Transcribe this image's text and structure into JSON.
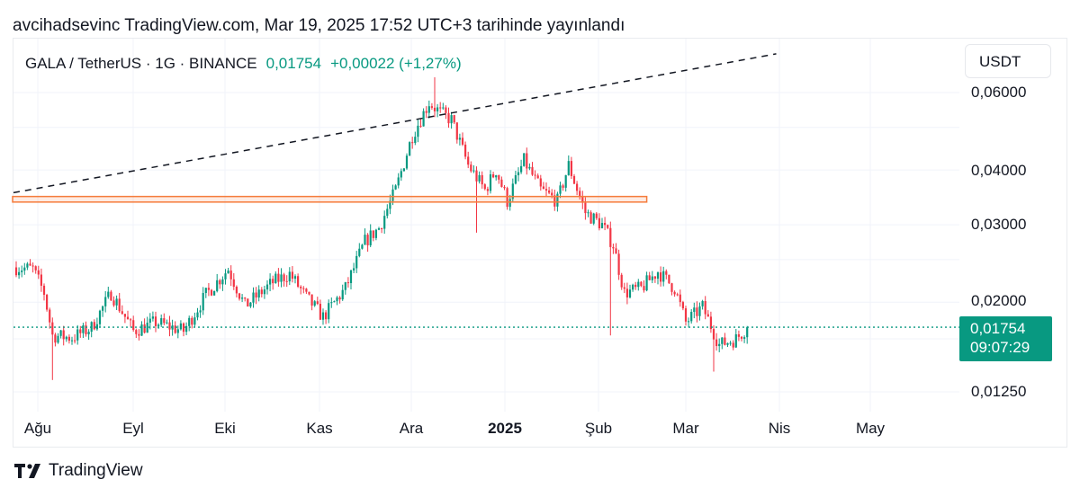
{
  "header": {
    "published": "avcihadsevinc TradingView.com, Mar 19, 2025 17:52 UTC+3 tarihinde yayınlandı"
  },
  "symbol": {
    "name": "GALA / TetherUS · 1G · BINANCE",
    "last": "0,01754",
    "change": "+0,00022 (+1,27%)"
  },
  "axis": {
    "unit": "USDT",
    "price_labels": [
      "0,06000",
      "0,04000",
      "0,03000",
      "0,02000",
      "0,01250"
    ],
    "time_labels": [
      "Ağu",
      "Eyl",
      "Eki",
      "Kas",
      "Ara",
      "2025",
      "Şub",
      "Mar",
      "Nis",
      "May"
    ]
  },
  "price_tag": {
    "value": "0,01754",
    "countdown": "09:07:29"
  },
  "footer": {
    "brand": "TradingView"
  },
  "colors": {
    "up": "#089981",
    "down": "#f23645",
    "zone": "#f57c3c",
    "grid": "#f0f3fa"
  },
  "chart_data": {
    "type": "candlestick",
    "title": "GALA / TetherUS · 1G · BINANCE",
    "y_scale": "log",
    "ylim": [
      0.0118,
      0.066
    ],
    "x_ticks": [
      "Ağu",
      "Eyl",
      "Eki",
      "Kas",
      "Ara",
      "2025",
      "Şub",
      "Mar",
      "Nis",
      "May"
    ],
    "y_ticks": [
      0.06,
      0.04,
      0.03,
      0.02,
      0.0125
    ],
    "last_price": 0.01754,
    "grid": true,
    "waypoints": [
      {
        "i": 0,
        "c": 0.024
      },
      {
        "i": 6,
        "c": 0.0238
      },
      {
        "i": 10,
        "c": 0.021
      },
      {
        "i": 13,
        "c": 0.0168
      },
      {
        "i": 20,
        "c": 0.0166
      },
      {
        "i": 27,
        "c": 0.0175
      },
      {
        "i": 34,
        "c": 0.021
      },
      {
        "i": 42,
        "c": 0.0172
      },
      {
        "i": 50,
        "c": 0.018
      },
      {
        "i": 60,
        "c": 0.0172
      },
      {
        "i": 68,
        "c": 0.0208
      },
      {
        "i": 76,
        "c": 0.0238
      },
      {
        "i": 82,
        "c": 0.0196
      },
      {
        "i": 92,
        "c": 0.0222
      },
      {
        "i": 98,
        "c": 0.0232
      },
      {
        "i": 104,
        "c": 0.0205
      },
      {
        "i": 110,
        "c": 0.0185
      },
      {
        "i": 118,
        "c": 0.0215
      },
      {
        "i": 125,
        "c": 0.0275
      },
      {
        "i": 130,
        "c": 0.0295
      },
      {
        "i": 136,
        "c": 0.036
      },
      {
        "i": 142,
        "c": 0.048
      },
      {
        "i": 148,
        "c": 0.057
      },
      {
        "i": 152,
        "c": 0.054
      },
      {
        "i": 156,
        "c": 0.052
      },
      {
        "i": 162,
        "c": 0.041
      },
      {
        "i": 168,
        "c": 0.036
      },
      {
        "i": 172,
        "c": 0.04
      },
      {
        "i": 176,
        "c": 0.034
      },
      {
        "i": 182,
        "c": 0.042
      },
      {
        "i": 188,
        "c": 0.036
      },
      {
        "i": 194,
        "c": 0.034
      },
      {
        "i": 198,
        "c": 0.041
      },
      {
        "i": 204,
        "c": 0.032
      },
      {
        "i": 210,
        "c": 0.03
      },
      {
        "i": 214,
        "c": 0.027
      },
      {
        "i": 218,
        "c": 0.021
      },
      {
        "i": 224,
        "c": 0.0215
      },
      {
        "i": 230,
        "c": 0.0235
      },
      {
        "i": 236,
        "c": 0.0215
      },
      {
        "i": 240,
        "c": 0.018
      },
      {
        "i": 246,
        "c": 0.0195
      },
      {
        "i": 252,
        "c": 0.016
      },
      {
        "i": 258,
        "c": 0.0165
      },
      {
        "i": 262,
        "c": 0.01754
      }
    ],
    "trendline": {
      "from": {
        "i": 0,
        "v": 0.0355
      },
      "to": {
        "i": 275,
        "v": 0.0735
      },
      "style": "dashed"
    },
    "resistance_zone": {
      "from_i": 0,
      "to_i": 226,
      "low": 0.0338,
      "high": 0.0348
    },
    "price_line": 0.01754
  }
}
